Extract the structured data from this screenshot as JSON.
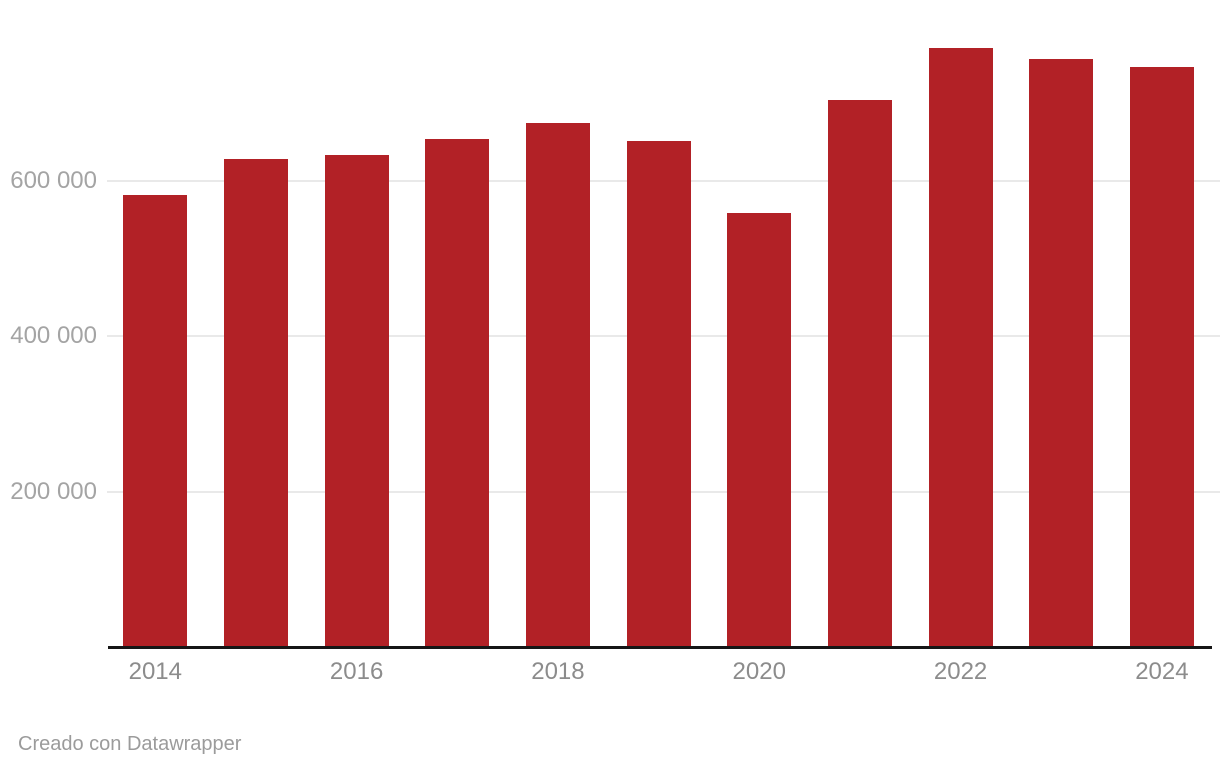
{
  "page": {
    "background": "#ffffff"
  },
  "footer": {
    "attribution": "Creado con Datawrapper"
  },
  "chart_data": {
    "type": "bar",
    "title": "",
    "xlabel": "",
    "ylabel": "",
    "categories": [
      "2014",
      "2015",
      "2016",
      "2017",
      "2018",
      "2019",
      "2020",
      "2021",
      "2022",
      "2023",
      "2024"
    ],
    "values": [
      581000,
      628000,
      633000,
      653000,
      674000,
      651000,
      558000,
      704000,
      770000,
      756000,
      746000
    ],
    "ylim": [
      0,
      800000
    ],
    "y_ticks": [
      {
        "value": 200000,
        "label": "200 000"
      },
      {
        "value": 400000,
        "label": "400 000"
      },
      {
        "value": 600000,
        "label": "600 000"
      }
    ],
    "x_tick_labels": [
      "2014",
      "2016",
      "2018",
      "2020",
      "2022",
      "2024"
    ],
    "grid": "horizontal",
    "legend": "none",
    "colors": {
      "bar": "#b22126",
      "gridline": "#e9e9e9",
      "axis_line": "#161616",
      "y_tick_label": "#a4a4a4",
      "x_tick_label": "#8c8c8c",
      "footer_text": "#9b9b9b"
    }
  }
}
